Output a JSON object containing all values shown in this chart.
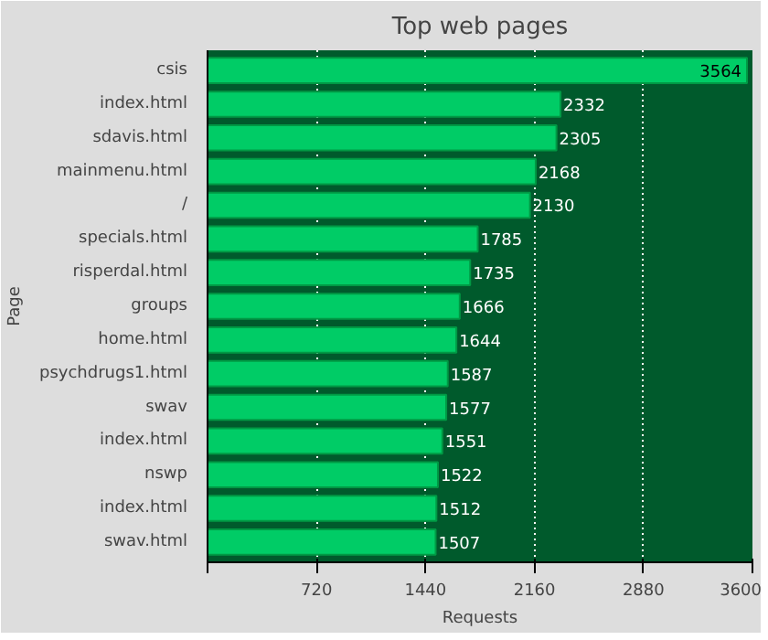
{
  "chart_data": {
    "type": "bar",
    "orientation": "horizontal",
    "title": "Top web pages",
    "xlabel": "Requests",
    "ylabel": "Page",
    "categories": [
      "csis",
      "index.html",
      "sdavis.html",
      "mainmenu.html",
      "/",
      "specials.html",
      "risperdal.html",
      "groups",
      "home.html",
      "psychdrugs1.html",
      "swav",
      "index.html",
      "nswp",
      "index.html",
      "swav.html"
    ],
    "values": [
      3564,
      2332,
      2305,
      2168,
      2130,
      1785,
      1735,
      1666,
      1644,
      1587,
      1577,
      1551,
      1522,
      1512,
      1507
    ],
    "color": "#00cc66",
    "xlim": [
      0,
      3600
    ],
    "xticks": [
      {
        "value": 0,
        "label": null
      },
      720,
      1440,
      2160,
      2880,
      3600
    ],
    "grid": "x",
    "data_labels": true
  }
}
